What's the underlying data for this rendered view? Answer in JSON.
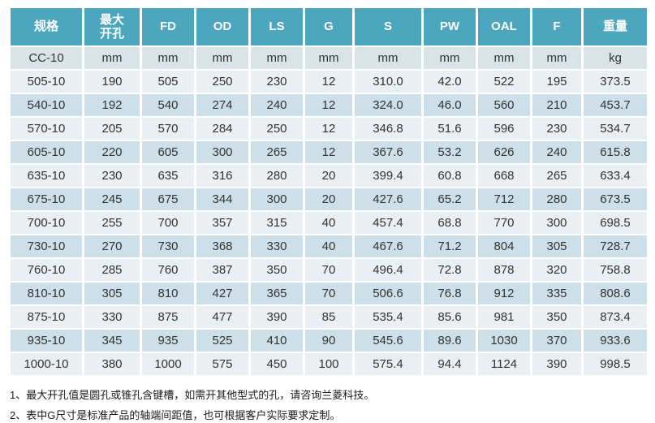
{
  "colors": {
    "header_bg": "#4ba6be",
    "header_text": "#ffffff",
    "unit_row_bg": "#d9e4e9",
    "row_light_bg": "#e9eff2",
    "row_dark_bg": "#cde0e9",
    "cell_text": "#333333"
  },
  "table": {
    "columns": {
      "spec": "规格",
      "max_bore": "最大\n开孔",
      "fd": "FD",
      "od": "OD",
      "ls": "LS",
      "g": "G",
      "s": "S",
      "pw": "PW",
      "oal": "OAL",
      "f": "F",
      "weight": "重量"
    },
    "unit_row": [
      "CC-10",
      "mm",
      "mm",
      "mm",
      "mm",
      "mm",
      "mm",
      "mm",
      "mm",
      "mm",
      "kg"
    ],
    "rows": [
      [
        "505-10",
        "190",
        "505",
        "250",
        "230",
        "12",
        "310.0",
        "42.0",
        "522",
        "195",
        "373.5"
      ],
      [
        "540-10",
        "192",
        "540",
        "274",
        "240",
        "12",
        "324.0",
        "46.0",
        "560",
        "210",
        "453.7"
      ],
      [
        "570-10",
        "205",
        "570",
        "284",
        "250",
        "12",
        "346.8",
        "51.6",
        "596",
        "230",
        "534.7"
      ],
      [
        "605-10",
        "220",
        "605",
        "300",
        "265",
        "12",
        "367.6",
        "53.2",
        "626",
        "240",
        "615.8"
      ],
      [
        "635-10",
        "230",
        "635",
        "316",
        "280",
        "20",
        "399.4",
        "60.8",
        "668",
        "265",
        "633.4"
      ],
      [
        "675-10",
        "245",
        "675",
        "344",
        "300",
        "20",
        "427.6",
        "65.2",
        "712",
        "280",
        "673.5"
      ],
      [
        "700-10",
        "255",
        "700",
        "357",
        "315",
        "40",
        "457.4",
        "68.8",
        "770",
        "300",
        "698.5"
      ],
      [
        "730-10",
        "270",
        "730",
        "368",
        "330",
        "40",
        "467.6",
        "71.2",
        "804",
        "305",
        "728.7"
      ],
      [
        "760-10",
        "285",
        "760",
        "387",
        "350",
        "70",
        "496.4",
        "72.8",
        "878",
        "320",
        "758.8"
      ],
      [
        "810-10",
        "305",
        "810",
        "427",
        "365",
        "70",
        "506.6",
        "76.8",
        "912",
        "335",
        "808.6"
      ],
      [
        "875-10",
        "330",
        "875",
        "477",
        "390",
        "85",
        "535.4",
        "85.6",
        "981",
        "350",
        "873.4"
      ],
      [
        "935-10",
        "345",
        "935",
        "525",
        "410",
        "90",
        "545.6",
        "89.6",
        "1030",
        "370",
        "933.6"
      ],
      [
        "1000-10",
        "380",
        "1000",
        "575",
        "450",
        "100",
        "575.4",
        "94.4",
        "1124",
        "390",
        "998.5"
      ]
    ]
  },
  "footnotes": [
    "1、最大开孔值是圆孔或锥孔含键槽，如需开其他型式的孔，请咨询兰菱科技。",
    "2、表中G尺寸是标准产品的轴端间距值，也可根据客户实际要求定制。"
  ]
}
